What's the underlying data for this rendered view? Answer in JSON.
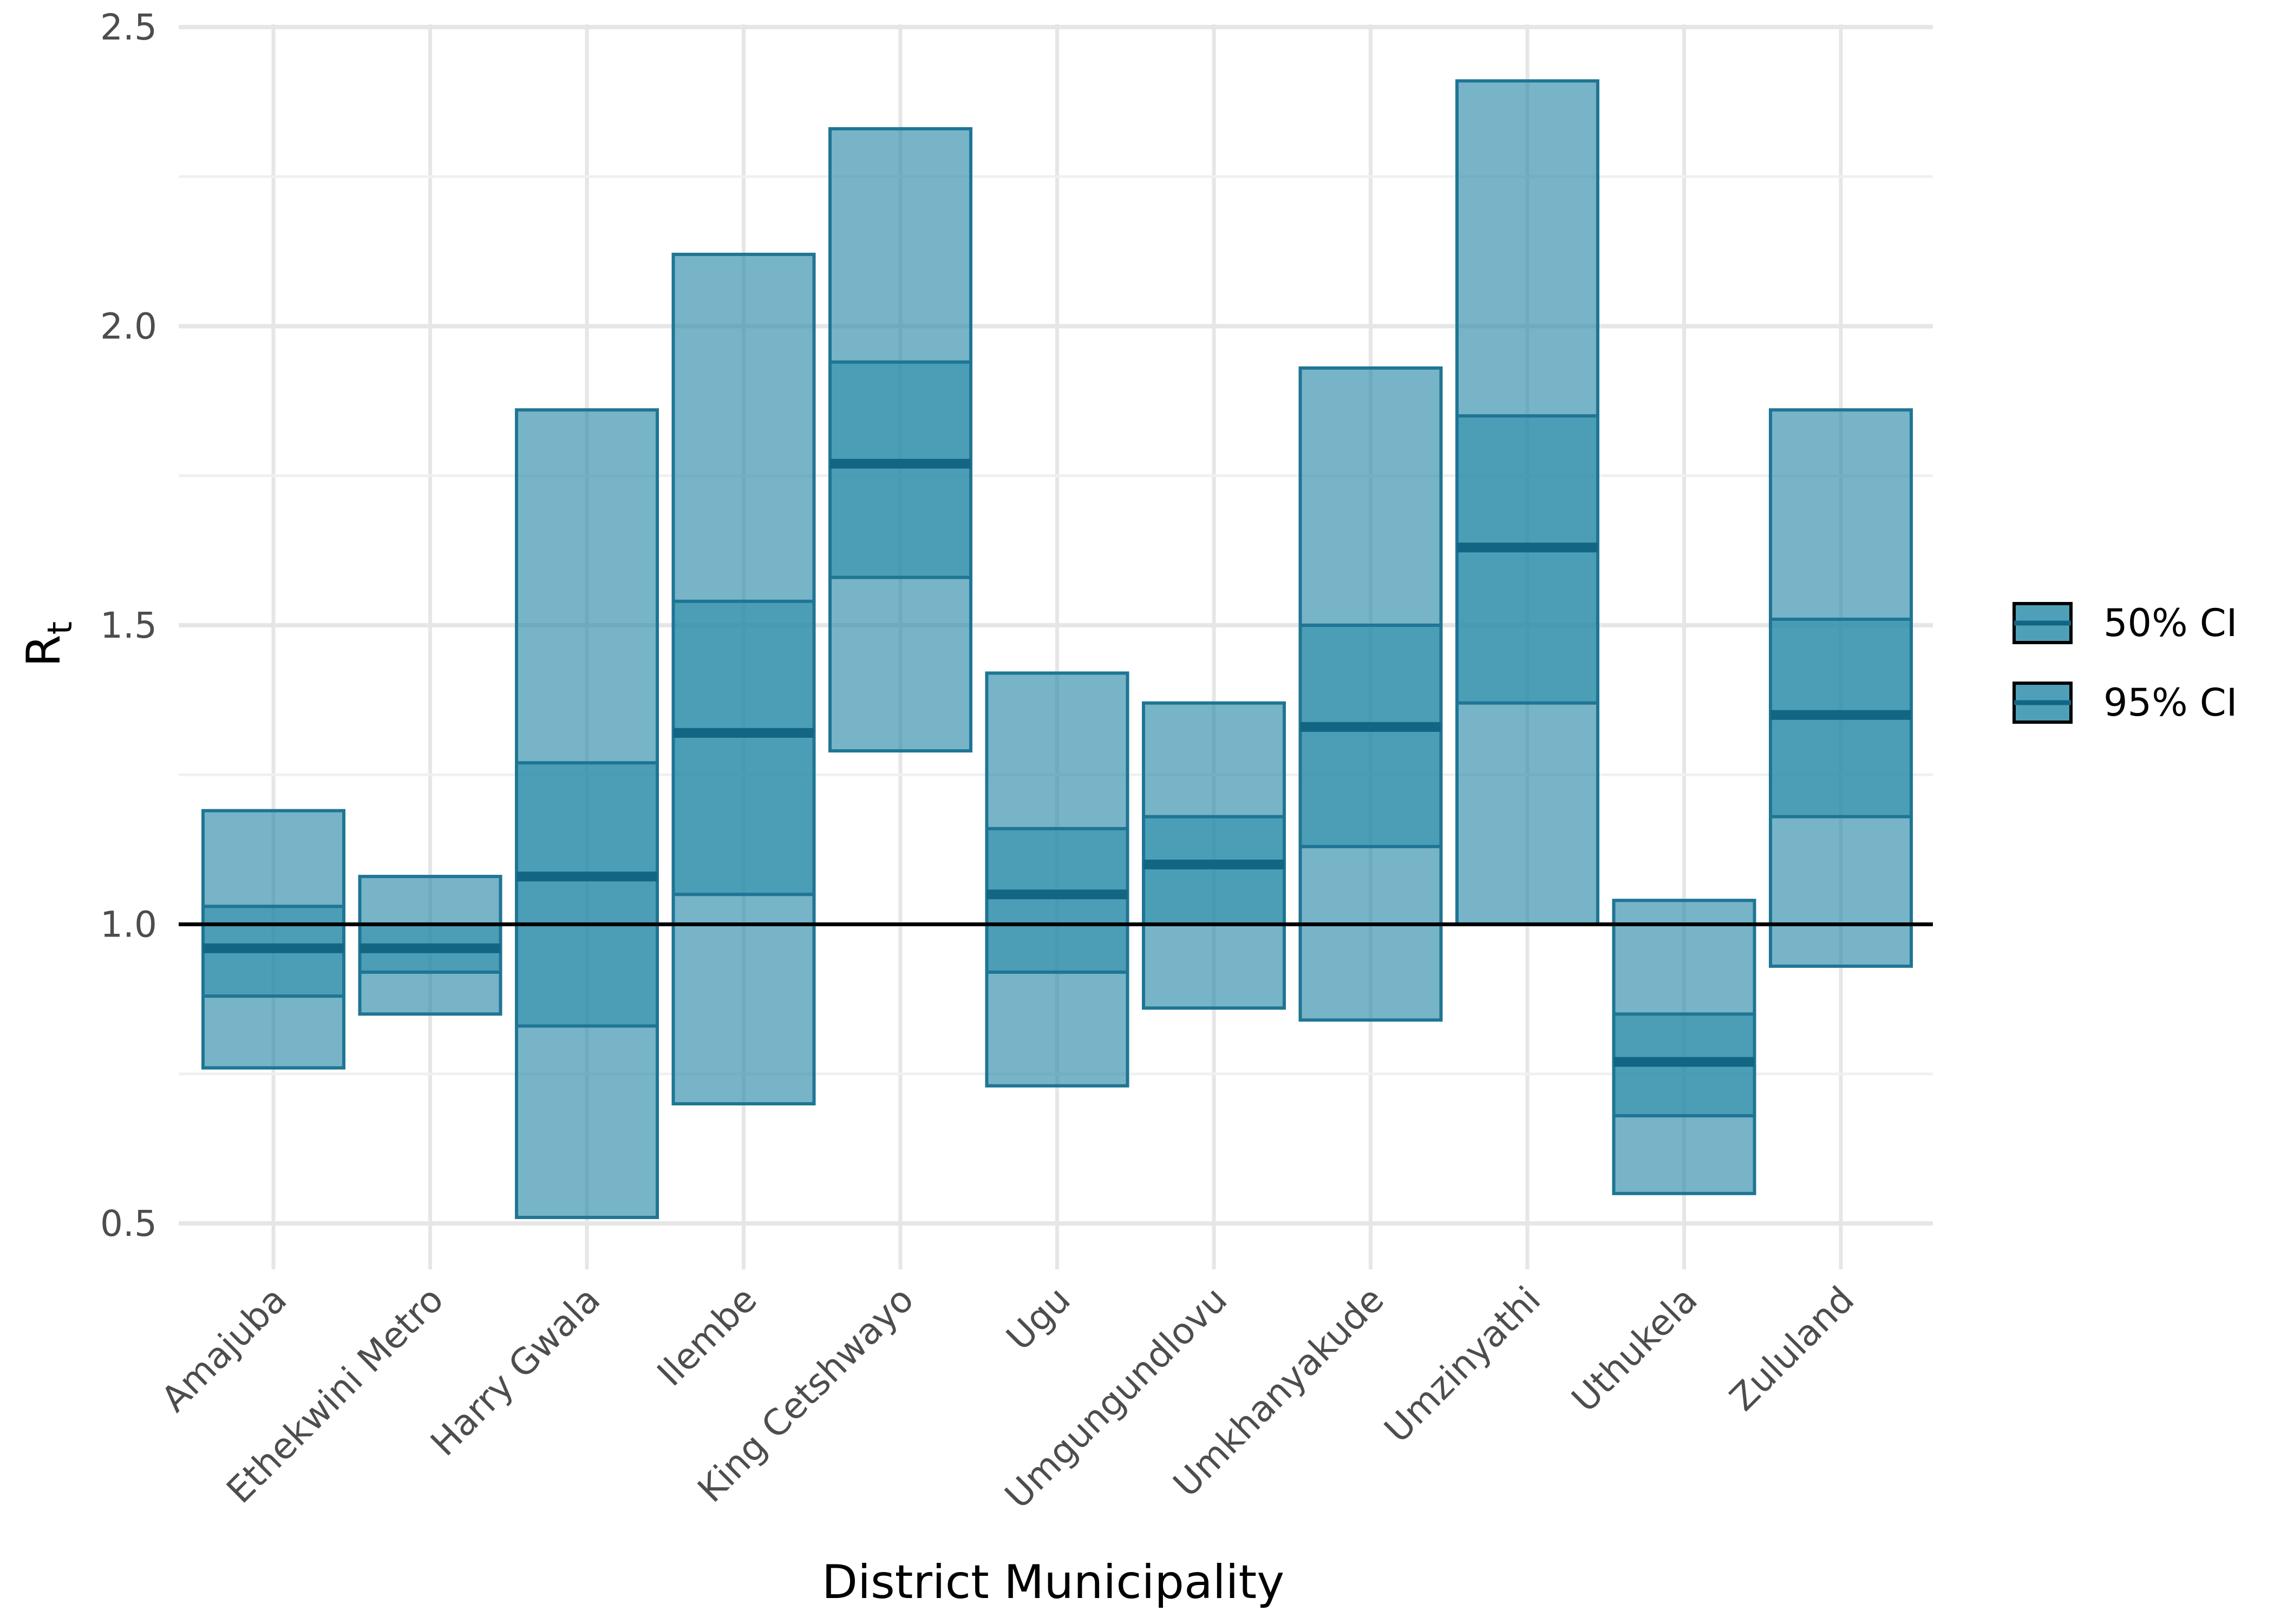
{
  "chart_data": {
    "type": "bar",
    "chart_subtype": "credible-interval crossbar",
    "xlabel": "District Municipality",
    "ylabel": {
      "main": "R",
      "subscript": "t"
    },
    "ylim": [
      0.4,
      2.5
    ],
    "y_ticks": [
      "0.5",
      "1.0",
      "1.5",
      "2.0",
      "2.5"
    ],
    "grid": true,
    "reference_line": 1.0,
    "colors": {
      "band_fill": "#2a8aa8",
      "band_stroke": "#1f7594",
      "median": "#126684",
      "reference_line": "#000000",
      "grid_major": "#e6e6e6",
      "grid_minor": "#f0f0f0"
    },
    "legend": {
      "position": "right",
      "entries": [
        {
          "label": "50% CI"
        },
        {
          "label": "95% CI"
        }
      ]
    },
    "categories": [
      "Amajuba",
      "Ethekwini Metro",
      "Harry Gwala",
      "Ilembe",
      "King Cetshwayo",
      "Ugu",
      "Umgungundlovu",
      "Umkhanyakude",
      "Umzinyathi",
      "Uthukela",
      "Zululand"
    ],
    "median": [
      0.96,
      0.96,
      1.08,
      1.32,
      1.77,
      1.05,
      1.1,
      1.33,
      1.63,
      0.77,
      1.35
    ],
    "ci95_lower": [
      0.76,
      0.85,
      0.51,
      0.7,
      1.29,
      0.73,
      0.86,
      0.84,
      1.0,
      0.55,
      0.93
    ],
    "ci95_upper": [
      1.19,
      1.08,
      1.86,
      2.12,
      2.33,
      1.42,
      1.37,
      1.93,
      2.41,
      1.04,
      1.86
    ],
    "ci50_lower": [
      0.88,
      0.92,
      0.83,
      1.05,
      1.58,
      0.92,
      1.0,
      1.13,
      1.37,
      0.68,
      1.18
    ],
    "ci50_upper": [
      1.03,
      1.0,
      1.27,
      1.54,
      1.94,
      1.16,
      1.18,
      1.5,
      1.85,
      0.85,
      1.51
    ]
  }
}
